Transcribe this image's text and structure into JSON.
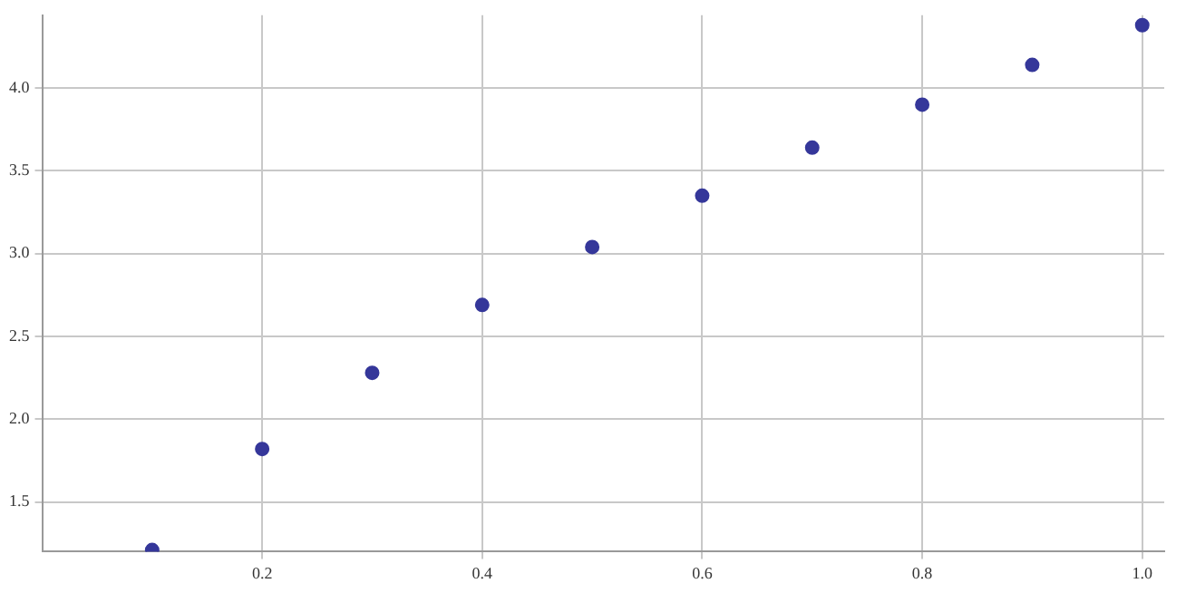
{
  "chart_data": {
    "type": "scatter",
    "x": [
      0.1,
      0.2,
      0.3,
      0.4,
      0.5,
      0.6,
      0.7,
      0.8,
      0.9,
      1.0
    ],
    "series": [
      {
        "color": "#35379a",
        "values": [
          1.21,
          1.82,
          2.28,
          2.69,
          3.04,
          3.35,
          3.64,
          3.9,
          4.14,
          4.38
        ]
      }
    ],
    "xlim": [
      0,
      1.02
    ],
    "ylim": [
      1.2,
      4.44
    ],
    "xticks": [
      0.2,
      0.4,
      0.6,
      0.8,
      {
        "value": 1,
        "label": "1.0"
      }
    ],
    "yticks": [
      1.5,
      {
        "value": 2,
        "label": "2.0"
      },
      2.5,
      {
        "value": 3,
        "label": "3.0"
      },
      3.5,
      {
        "value": 4,
        "label": "4.0"
      }
    ],
    "grid": true,
    "marker": "circle"
  }
}
